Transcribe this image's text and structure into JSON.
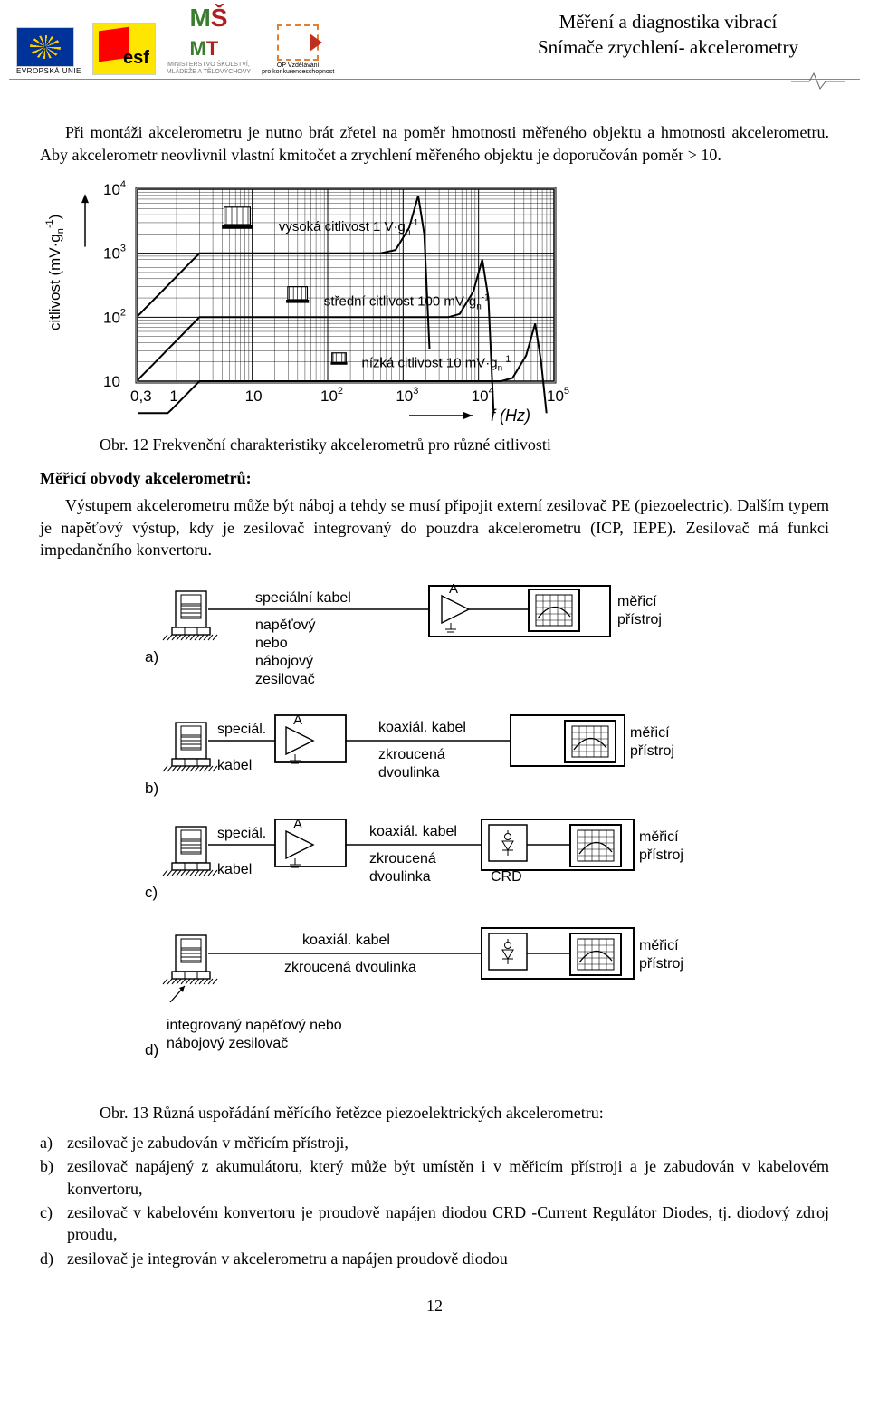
{
  "header": {
    "title1": "Měření a diagnostika vibrací",
    "title2": "Snímače zrychlení- akcelerometry",
    "eu_label": "EVROPSKÁ UNIE",
    "msmt_line1": "MINISTERSTVO ŠKOLSTVÍ,",
    "msmt_line2": "MLÁDEŽE A TĚLOVÝCHOVY",
    "opvk_line1": "OP Vzdělávání",
    "opvk_line2": "pro konkurenceschopnost"
  },
  "intro": "Při montáži akcelerometru je nutno brát zřetel na poměr hmotnosti měřeného objektu a hmotnosti akcelerometru. Aby akcelerometr neovlivnil vlastní kmitočet a zrychlení měřeného objektu je doporučován poměr > 10.",
  "fig12": {
    "caption": "Obr. 12 Frekvenční charakteristiky akcelerometrů pro různé citlivosti",
    "ylabel": "citlivost (mV·g",
    "ylabel_sup": "-1",
    "ylabel_end": ")",
    "xlabel": "f (Hz)",
    "yticks": [
      "10",
      "10",
      "10",
      "10"
    ],
    "ytick_sups": [
      "",
      "2",
      "3",
      "4"
    ],
    "xticks": [
      "0,3",
      "1",
      "10",
      "10",
      "10",
      "10",
      "10"
    ],
    "xtick_sups": [
      "",
      "",
      "",
      "2",
      "3",
      "4",
      "5"
    ],
    "curve_labels": {
      "high": "vysoká citlivost 1 V·g",
      "high_sup": "-1",
      "mid": "střední citlivost 100 mV·g",
      "mid_sup": "-1",
      "low": "nízká citlivost 10 mV·g",
      "low_sup": "-1"
    },
    "y_decades": [
      1,
      2,
      3,
      4
    ],
    "x_decades": [
      -0.52,
      0,
      1,
      2,
      3,
      4,
      5
    ],
    "curves": {
      "high": {
        "flat_y": 3.0,
        "roll_x": 0.1,
        "peak_x": 3.2
      },
      "mid": {
        "flat_y": 2.0,
        "roll_x": 0.1,
        "peak_x": 4.05
      },
      "low": {
        "flat_y": 1.0,
        "roll_x": 0.1,
        "peak_x": 4.75
      }
    },
    "colors": {
      "stroke": "#000000",
      "bg": "#ffffff",
      "box_stroke": "#000000"
    }
  },
  "section_heading": "Měřicí obvody akcelerometrů:",
  "section_body": "Výstupem akcelerometru může být náboj a tehdy se musí připojit externí zesilovač PE (piezoelectric). Dalším typem je napěťový výstup, kdy je zesilovač integrovaný do pouzdra akcelerometru (ICP, IEPE). Zesilovač má funkci impedančního konvertoru.",
  "fig13": {
    "caption": "Obr. 13 Různá uspořádání měřícího řetězce piezoelektrických akcelerometru:",
    "sensor_label_a1": "speciální kabel",
    "sensor_label_a2": "napěťový",
    "sensor_label_a3": "nebo",
    "sensor_label_a4": "nábojový",
    "sensor_label_a5": "zesilovač",
    "special_cable": "speciál.",
    "special_cable2": "kabel",
    "coax_cable": "koaxiál. kabel",
    "twisted_pair": "zkroucená",
    "twisted_pair2": "dvoulinka",
    "crd": "CRD",
    "meter": "měřicí",
    "meter2": "přístroj",
    "amp_letter": "A",
    "int_amp_line1": "integrovaný napěťový nebo",
    "int_amp_line2": "nábojový zesilovač",
    "row_labels": [
      "a)",
      "b)",
      "c)",
      "d)"
    ],
    "colors": {
      "stroke": "#000000",
      "bg": "#ffffff"
    }
  },
  "list": {
    "a": "zesilovač je zabudován v měřicím přístroji,",
    "b": "zesilovač napájený z akumulátoru, který může být umístěn i v měřicím přístroji a je   zabudován v kabelovém konvertoru,",
    "c": "zesilovač v kabelovém konvertoru je proudově napájen diodou CRD -Current Regulátor Diodes, tj. diodový zdroj proudu,",
    "d": "zesilovač je integrován v akcelerometru a napájen proudově diodou"
  },
  "page_number": "12"
}
